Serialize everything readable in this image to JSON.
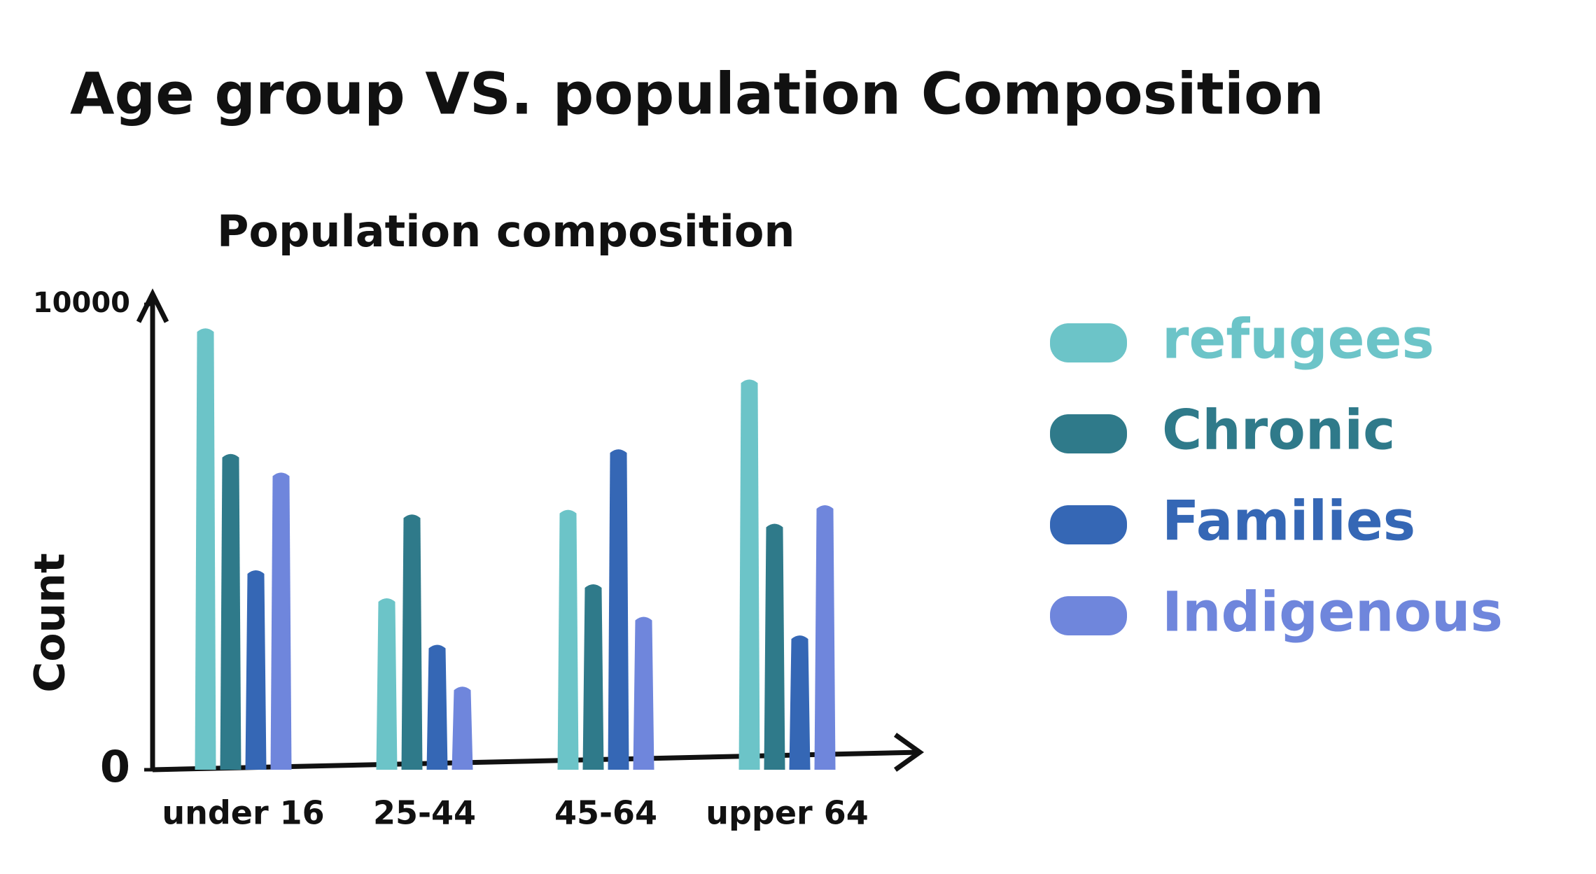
{
  "chart_data": {
    "type": "bar",
    "title": "Age group VS. population Composition",
    "subtitle": "Population composition",
    "y_label": "Count",
    "categories": [
      "under 16",
      "25-44",
      "45-64",
      "upper 64"
    ],
    "series": [
      {
        "name": "refugees",
        "color": "#6cc4c8",
        "values": [
          9500,
          3700,
          5600,
          8400
        ]
      },
      {
        "name": "Chronic",
        "color": "#2f7a8a",
        "values": [
          6800,
          5500,
          4000,
          5300
        ]
      },
      {
        "name": "Families",
        "color": "#3567b5",
        "values": [
          4300,
          2700,
          6900,
          2900
        ]
      },
      {
        "name": "Indigenous",
        "color": "#6f86dc",
        "values": [
          6400,
          1800,
          3300,
          5700
        ]
      }
    ],
    "ylim": [
      0,
      10000
    ],
    "yticks": [
      0,
      10000
    ],
    "grid": false
  }
}
